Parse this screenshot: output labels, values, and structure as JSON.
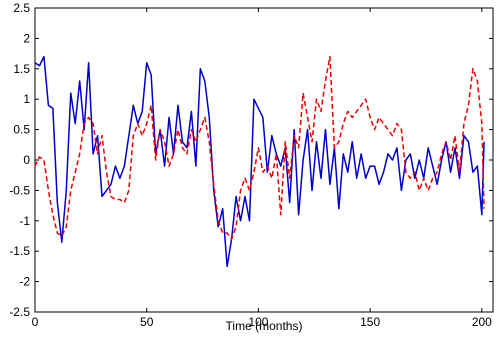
{
  "chart_data": {
    "type": "line",
    "x_label": "Time (months)",
    "x": [
      0,
      2,
      4,
      6,
      8,
      10,
      12,
      14,
      16,
      18,
      20,
      22,
      24,
      26,
      28,
      30,
      32,
      34,
      36,
      38,
      40,
      42,
      44,
      46,
      48,
      50,
      52,
      54,
      56,
      58,
      60,
      62,
      64,
      66,
      68,
      70,
      72,
      74,
      76,
      78,
      80,
      82,
      84,
      86,
      88,
      90,
      92,
      94,
      96,
      98,
      100,
      102,
      104,
      106,
      108,
      110,
      112,
      114,
      116,
      118,
      120,
      122,
      124,
      126,
      128,
      130,
      132,
      134,
      136,
      138,
      140,
      142,
      144,
      146,
      148,
      150,
      152,
      154,
      156,
      158,
      160,
      162,
      164,
      166,
      168,
      170,
      172,
      174,
      176,
      178,
      180,
      182,
      184,
      186,
      188,
      190,
      192,
      194,
      196,
      198,
      200,
      201
    ],
    "series": [
      {
        "color": "#0000cc",
        "dash": false,
        "values": [
          1.6,
          1.55,
          1.7,
          0.9,
          0.85,
          -0.7,
          -1.35,
          -0.5,
          1.1,
          0.6,
          1.3,
          0.5,
          1.6,
          0.1,
          0.4,
          -0.6,
          -0.5,
          -0.4,
          -0.1,
          -0.3,
          -0.1,
          0.4,
          0.9,
          0.6,
          0.8,
          1.6,
          1.4,
          0.1,
          0.5,
          -0.1,
          0.7,
          0.1,
          0.9,
          0.3,
          0.2,
          0.8,
          -0.1,
          1.5,
          1.3,
          0.7,
          -0.5,
          -1.1,
          -0.8,
          -1.75,
          -1.3,
          -0.6,
          -1.0,
          -0.6,
          -1.0,
          1.0,
          0.85,
          0.7,
          -0.2,
          0.4,
          0.1,
          -0.1,
          0.2,
          -0.7,
          0.5,
          -0.9,
          0.0,
          0.5,
          -0.5,
          0.3,
          -0.3,
          0.5,
          -0.4,
          0.2,
          -0.8,
          0.1,
          -0.2,
          0.3,
          -0.3,
          0.1,
          -0.3,
          -0.1,
          -0.1,
          -0.4,
          -0.2,
          0.1,
          0.0,
          0.2,
          -0.5,
          0.0,
          0.1,
          -0.3,
          0.0,
          -0.3,
          0.2,
          -0.1,
          -0.4,
          0.0,
          0.3,
          -0.2,
          0.2,
          -0.3,
          0.4,
          0.3,
          -0.2,
          -0.1,
          -0.9,
          0.3
        ]
      },
      {
        "color": "#ee0000",
        "dash": true,
        "values": [
          -0.1,
          0.05,
          0.0,
          -0.5,
          -0.9,
          -1.2,
          -1.25,
          -1.1,
          -0.5,
          -0.2,
          0.1,
          0.6,
          0.7,
          0.6,
          0.1,
          0.4,
          -0.2,
          -0.6,
          -0.65,
          -0.65,
          -0.7,
          -0.5,
          0.4,
          0.6,
          0.4,
          0.6,
          0.9,
          0.0,
          0.5,
          0.3,
          -0.1,
          0.1,
          0.5,
          0.2,
          0.1,
          0.5,
          0.3,
          0.5,
          0.7,
          0.3,
          -0.4,
          -1.0,
          -1.2,
          -1.2,
          -1.3,
          -1.1,
          -0.5,
          -0.3,
          -0.5,
          -0.2,
          0.2,
          -0.2,
          -0.1,
          -0.3,
          0.1,
          -0.9,
          0.3,
          -0.3,
          0.4,
          0.2,
          1.1,
          0.7,
          0.3,
          1.0,
          0.8,
          1.3,
          1.7,
          0.2,
          0.3,
          0.6,
          0.8,
          0.7,
          0.8,
          0.9,
          1.0,
          0.7,
          0.5,
          0.7,
          0.6,
          0.5,
          0.4,
          0.6,
          0.5,
          -0.2,
          -0.3,
          -0.2,
          -0.5,
          -0.3,
          -0.5,
          -0.3,
          -0.2,
          0.1,
          0.3,
          0.0,
          0.4,
          -0.2,
          0.6,
          0.9,
          1.5,
          1.3,
          0.6,
          -0.8
        ]
      }
    ],
    "xlim": [
      0,
      205
    ],
    "ylim": [
      -2.5,
      2.5
    ],
    "xticks": [
      0,
      50,
      100,
      150,
      200
    ],
    "yticks": [
      -2.5,
      -2,
      -1.5,
      -1,
      -0.5,
      0,
      0.5,
      1,
      1.5,
      2,
      2.5
    ]
  }
}
